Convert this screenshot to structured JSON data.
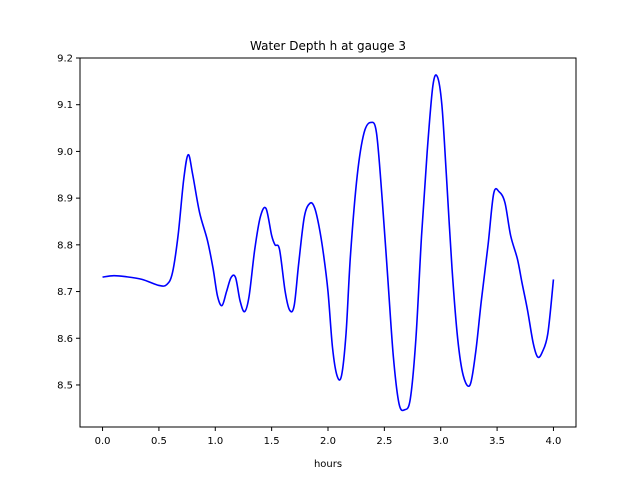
{
  "chart_data": {
    "type": "line",
    "title": "Water Depth h at gauge 3",
    "xlabel": "hours",
    "ylabel": "",
    "xlim": [
      -0.2,
      4.2
    ],
    "ylim": [
      8.41,
      9.2
    ],
    "xticks": [
      0.0,
      0.5,
      1.0,
      1.5,
      2.0,
      2.5,
      3.0,
      3.5,
      4.0
    ],
    "xtick_labels": [
      "0.0",
      "0.5",
      "1.0",
      "1.5",
      "2.0",
      "2.5",
      "3.0",
      "3.5",
      "4.0"
    ],
    "yticks": [
      8.5,
      8.6,
      8.7,
      8.8,
      8.9,
      9.0,
      9.1,
      9.2
    ],
    "ytick_labels": [
      "8.5",
      "8.6",
      "8.7",
      "8.8",
      "8.9",
      "9.0",
      "9.1",
      "9.2"
    ],
    "grid": false,
    "series": [
      {
        "color": "#0000ff",
        "x": [
          0.0,
          0.1,
          0.2,
          0.35,
          0.5,
          0.57,
          0.62,
          0.67,
          0.72,
          0.76,
          0.8,
          0.86,
          0.93,
          0.98,
          1.02,
          1.06,
          1.1,
          1.14,
          1.18,
          1.22,
          1.26,
          1.3,
          1.35,
          1.4,
          1.45,
          1.5,
          1.53,
          1.57,
          1.62,
          1.66,
          1.7,
          1.74,
          1.79,
          1.84,
          1.88,
          1.92,
          1.96,
          2.0,
          2.04,
          2.08,
          2.12,
          2.16,
          2.2,
          2.26,
          2.32,
          2.38,
          2.43,
          2.48,
          2.53,
          2.58,
          2.63,
          2.68,
          2.73,
          2.78,
          2.83,
          2.88,
          2.93,
          2.97,
          3.01,
          3.05,
          3.1,
          3.15,
          3.2,
          3.26,
          3.31,
          3.36,
          3.42,
          3.47,
          3.52,
          3.57,
          3.62,
          3.68,
          3.72,
          3.77,
          3.82,
          3.86,
          3.9,
          3.95,
          4.0
        ],
        "values": [
          8.731,
          8.734,
          8.732,
          8.726,
          8.713,
          8.715,
          8.74,
          8.82,
          8.94,
          8.993,
          8.95,
          8.87,
          8.81,
          8.75,
          8.69,
          8.67,
          8.7,
          8.73,
          8.73,
          8.68,
          8.657,
          8.69,
          8.79,
          8.86,
          8.878,
          8.82,
          8.8,
          8.79,
          8.7,
          8.66,
          8.67,
          8.76,
          8.86,
          8.889,
          8.88,
          8.84,
          8.78,
          8.7,
          8.58,
          8.52,
          8.52,
          8.61,
          8.78,
          8.95,
          9.04,
          9.062,
          9.04,
          8.9,
          8.73,
          8.56,
          8.46,
          8.447,
          8.47,
          8.6,
          8.82,
          9.0,
          9.14,
          9.16,
          9.1,
          8.95,
          8.75,
          8.6,
          8.52,
          8.5,
          8.57,
          8.68,
          8.8,
          8.91,
          8.913,
          8.89,
          8.82,
          8.77,
          8.72,
          8.66,
          8.59,
          8.56,
          8.57,
          8.61,
          8.726
        ]
      }
    ]
  }
}
